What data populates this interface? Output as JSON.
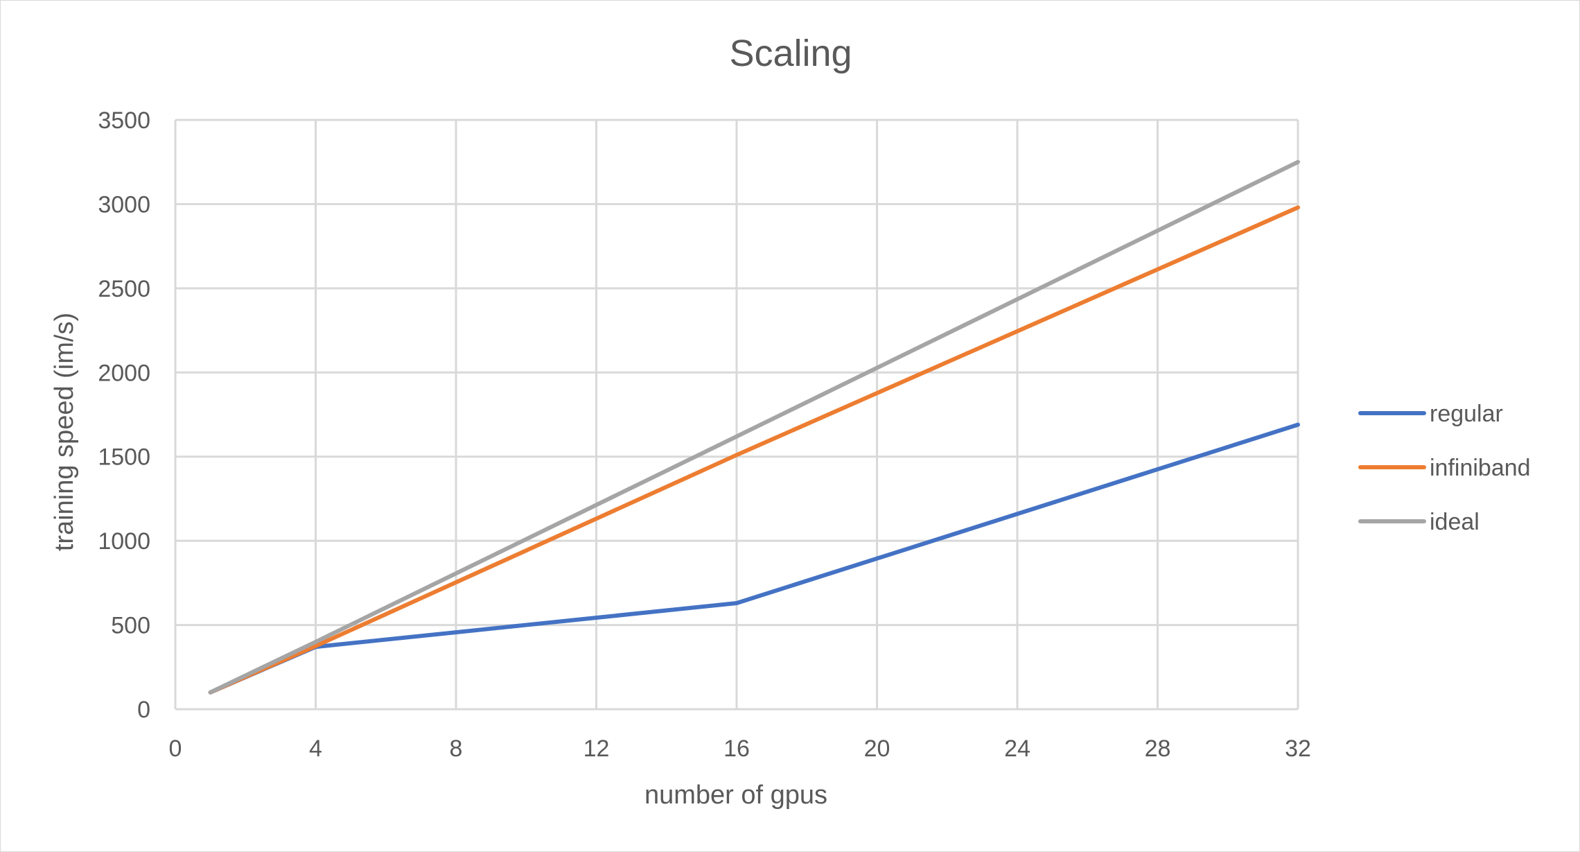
{
  "chart_data": {
    "type": "line",
    "title": "Scaling",
    "xlabel": "number of gpus",
    "ylabel": "training speed (im/s)",
    "xlim": [
      0,
      32
    ],
    "ylim": [
      0,
      3500
    ],
    "x_ticks": [
      0,
      4,
      8,
      12,
      16,
      20,
      24,
      28,
      32
    ],
    "y_ticks": [
      0,
      500,
      1000,
      1500,
      2000,
      2500,
      3000,
      3500
    ],
    "grid": true,
    "legend_position": "right",
    "x": [
      1,
      4,
      16,
      32
    ],
    "series": [
      {
        "name": "regular",
        "color": "#4472C4",
        "values": [
          100,
          370,
          630,
          1690
        ]
      },
      {
        "name": "infiniband",
        "color": "#ED7D31",
        "values": [
          100,
          375,
          1510,
          2980
        ]
      },
      {
        "name": "ideal",
        "color": "#A5A5A5",
        "values": [
          100,
          400,
          1620,
          3250
        ]
      }
    ]
  }
}
